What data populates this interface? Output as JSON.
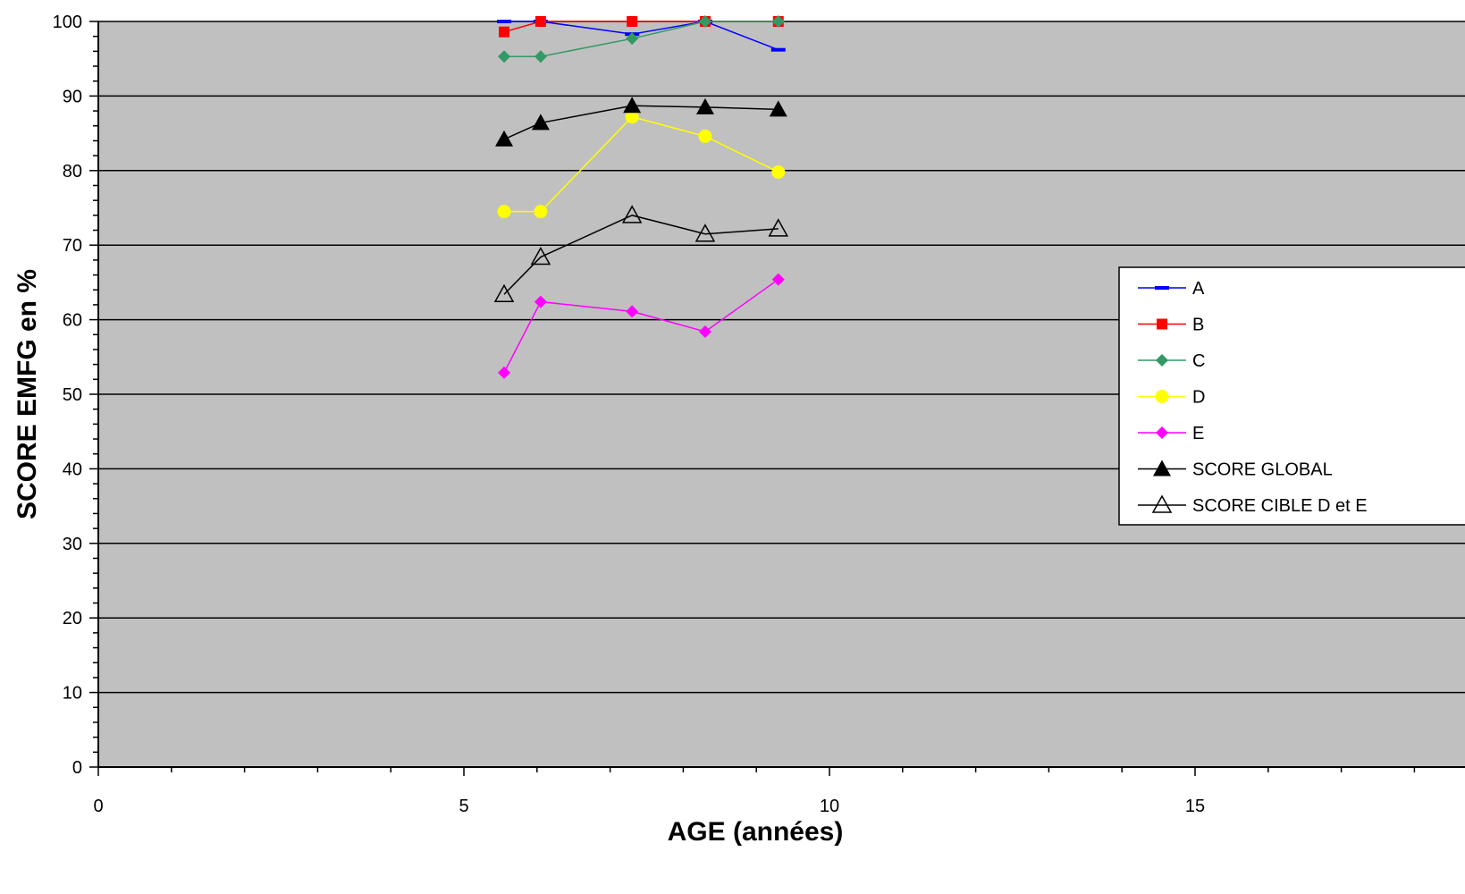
{
  "chart_data": {
    "type": "scatter",
    "title": "",
    "xlabel": "AGE (années)",
    "ylabel": "SCORE EMFG en %",
    "xlim": [
      0,
      18
    ],
    "ylim": [
      0,
      100
    ],
    "x_ticks": [
      0,
      5,
      10,
      15
    ],
    "y_ticks": [
      0,
      10,
      20,
      30,
      40,
      50,
      60,
      70,
      80,
      90,
      100
    ],
    "grid": "horizontal",
    "background": "#c0c0c0",
    "legend_position": "right",
    "series": [
      {
        "name": "A",
        "color": "#0000ff",
        "marker": "dash",
        "x": [
          5.55,
          6.05,
          7.3,
          8.3,
          9.3
        ],
        "y": [
          100,
          100,
          98.3,
          100,
          96.2
        ]
      },
      {
        "name": "B",
        "color": "#ff0000",
        "marker": "square",
        "x": [
          5.55,
          6.05,
          7.3,
          8.3,
          9.3
        ],
        "y": [
          98.6,
          100,
          100,
          100,
          100
        ]
      },
      {
        "name": "C",
        "color": "#339966",
        "marker": "diamond",
        "x": [
          5.55,
          6.05,
          7.3,
          8.3,
          9.3
        ],
        "y": [
          95.3,
          95.3,
          97.7,
          100,
          100
        ]
      },
      {
        "name": "D",
        "color": "#ffff00",
        "marker": "circle",
        "x": [
          5.55,
          6.05,
          7.3,
          8.3,
          9.3
        ],
        "y": [
          74.5,
          74.5,
          87.2,
          84.6,
          79.8
        ]
      },
      {
        "name": "E",
        "color": "#ff00ff",
        "marker": "diamond",
        "x": [
          5.55,
          6.05,
          7.3,
          8.3,
          9.3
        ],
        "y": [
          52.9,
          62.4,
          61.1,
          58.4,
          65.4
        ]
      },
      {
        "name": "SCORE GLOBAL",
        "color": "#000000",
        "marker": "triangle-filled",
        "x": [
          5.55,
          6.05,
          7.3,
          8.3,
          9.3
        ],
        "y": [
          84.2,
          86.4,
          88.7,
          88.5,
          88.2
        ]
      },
      {
        "name": "SCORE CIBLE D et E",
        "color": "#000000",
        "marker": "triangle-open",
        "x": [
          5.55,
          6.05,
          7.3,
          8.3,
          9.3
        ],
        "y": [
          63.4,
          68.4,
          74.0,
          71.5,
          72.2
        ]
      }
    ]
  }
}
